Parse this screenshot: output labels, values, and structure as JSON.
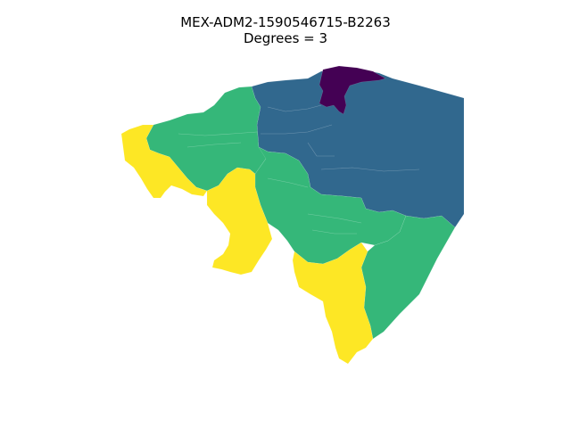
{
  "figure": {
    "title_line1": "MEX-ADM2-1590546715-B2263",
    "title_line2": "Degrees = 3"
  },
  "palette": {
    "degree_1": "#440154",
    "degree_2": "#31688e",
    "degree_3": "#35b779",
    "degree_4": "#fde725"
  }
}
